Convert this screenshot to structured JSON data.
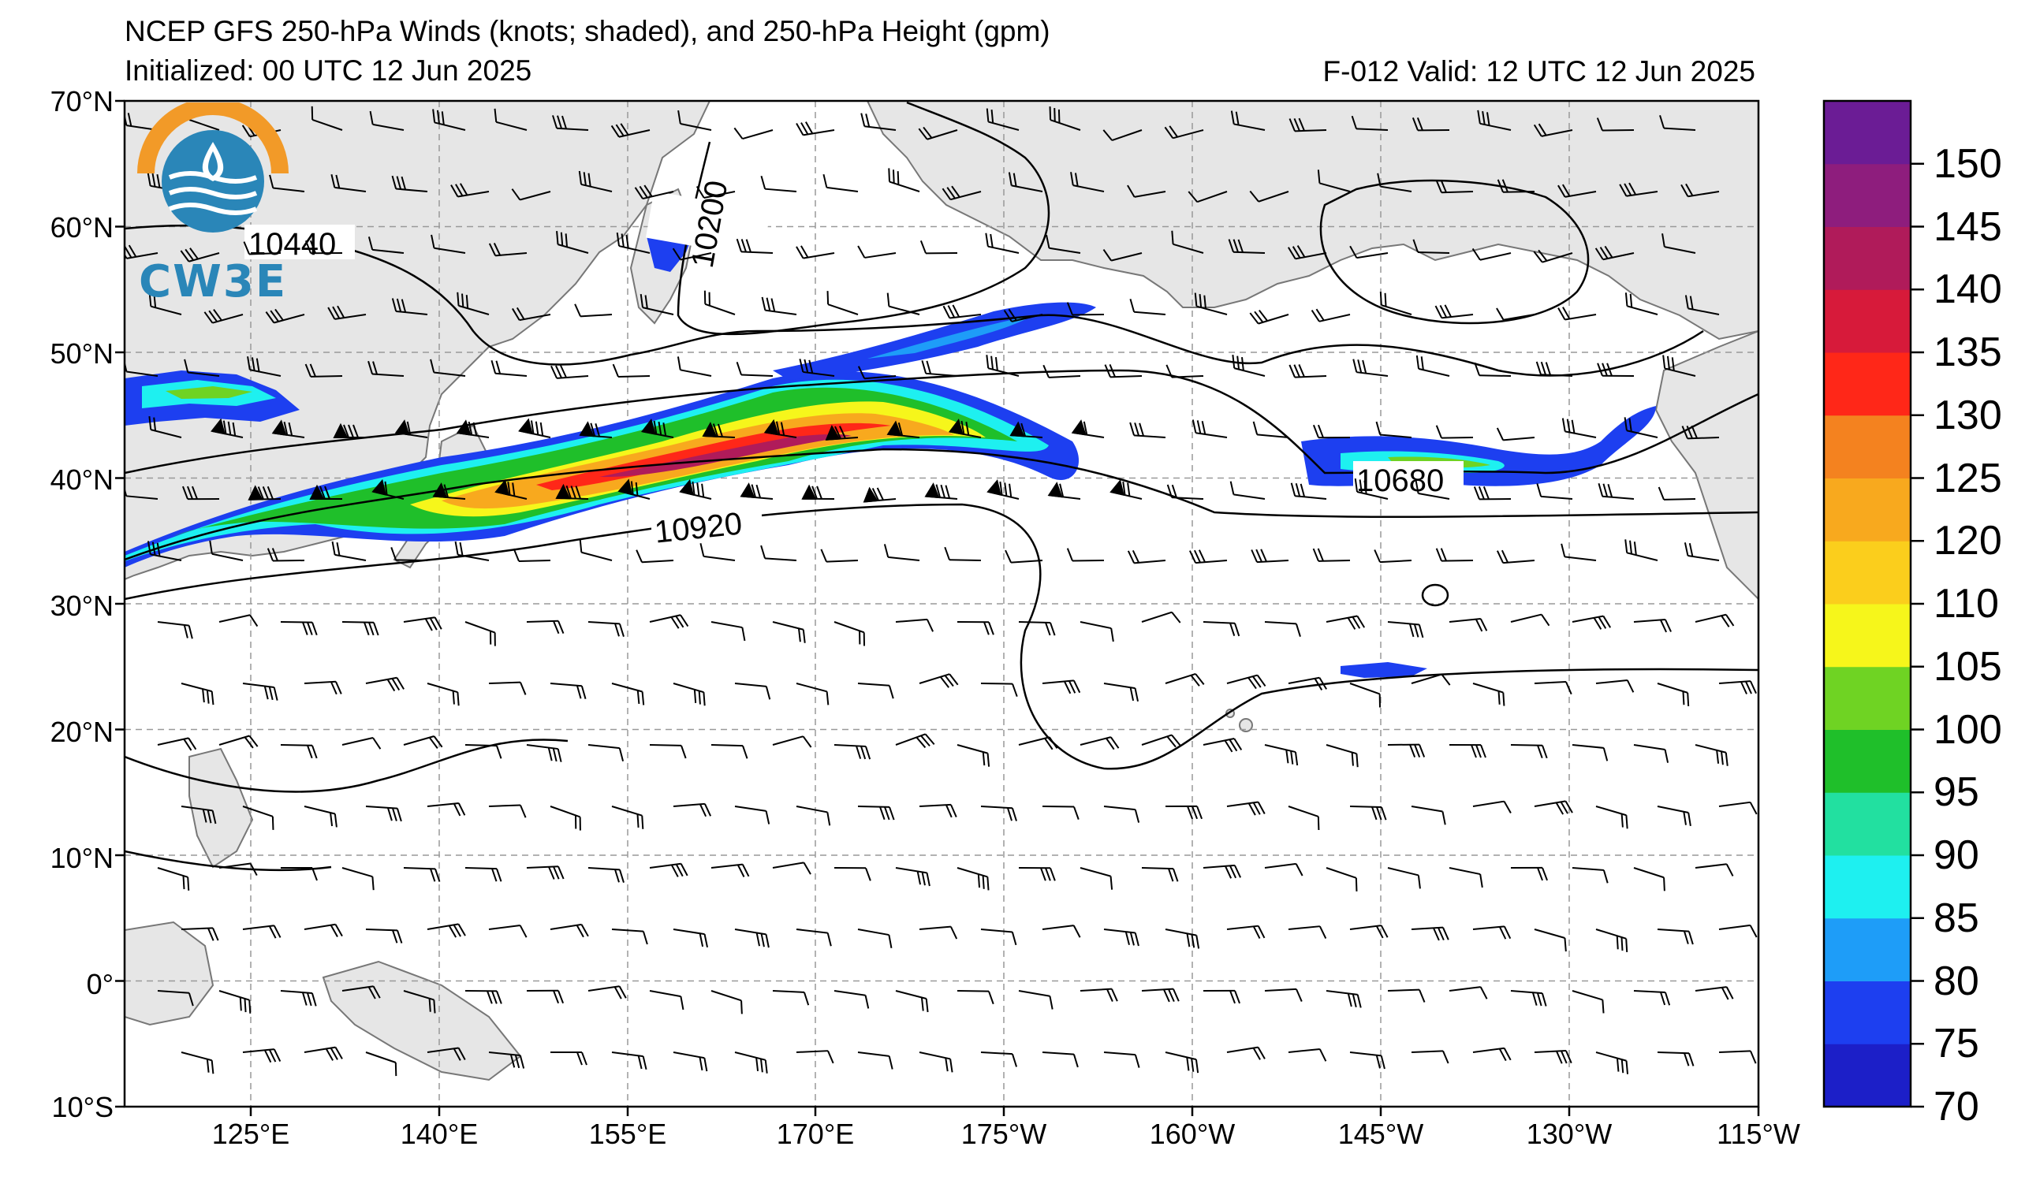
{
  "title": {
    "line1": "NCEP GFS 250-hPa Winds (knots; shaded), and 250-hPa Height (gpm)",
    "line2": "Initialized: 00 UTC 12 Jun 2025",
    "valid": "F-012  Valid: 12 UTC 12 Jun 2025"
  },
  "logo": {
    "text": "CW3E",
    "icon": "cw3e-water-drop-logo"
  },
  "map": {
    "lat_labels": [
      "70°N",
      "60°N",
      "50°N",
      "40°N",
      "30°N",
      "20°N",
      "10°N",
      "0°",
      "10°S"
    ],
    "lon_labels": [
      "125°E",
      "140°E",
      "155°E",
      "170°E",
      "175°W",
      "160°W",
      "145°W",
      "130°W",
      "115°W"
    ],
    "contour_labels": [
      "10440",
      "10200",
      "10920",
      "10680"
    ],
    "land_color": "#e6e6e6",
    "ocean_color": "#ffffff",
    "grid_style": "dashed gray"
  },
  "colorbar": {
    "labels": [
      "70",
      "75",
      "80",
      "85",
      "90",
      "95",
      "100",
      "105",
      "110",
      "120",
      "125",
      "130",
      "135",
      "140",
      "145",
      "150"
    ],
    "colors": [
      "#1c1fc8",
      "#1d3ff0",
      "#1e9df8",
      "#1ef0f0",
      "#22e0a0",
      "#1fbf2a",
      "#6fd323",
      "#f6f61b",
      "#fbce1c",
      "#f8a91e",
      "#f4821f",
      "#ff2718",
      "#d71a3a",
      "#b01b5a",
      "#8e1d7d",
      "#6b1c95"
    ]
  }
}
